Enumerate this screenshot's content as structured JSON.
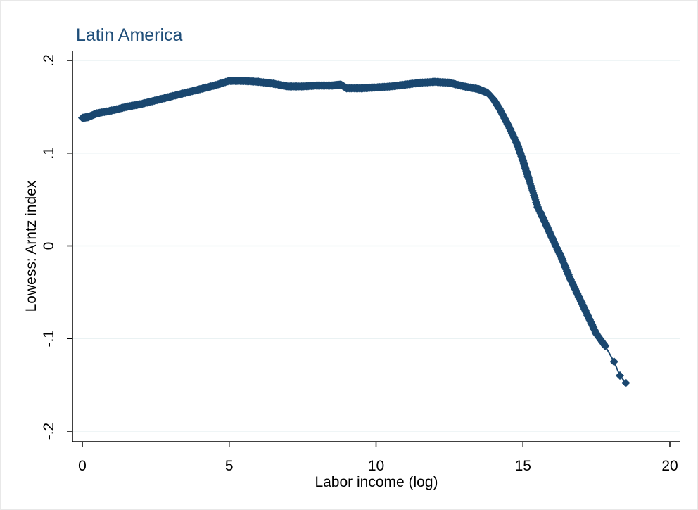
{
  "chart_data": {
    "type": "scatter",
    "title": "Latin America",
    "xlabel": "Labor income (log)",
    "ylabel": "Lowess: Arntz index",
    "xlim": [
      0,
      20
    ],
    "ylim": [
      -0.2,
      0.2
    ],
    "xticks": [
      0,
      5,
      10,
      15,
      20
    ],
    "xtick_labels": [
      "0",
      "5",
      "10",
      "15",
      "20"
    ],
    "yticks": [
      -0.2,
      -0.1,
      0,
      0.1,
      0.2
    ],
    "ytick_labels": [
      "-.2",
      "-.1",
      "0",
      ".1",
      ".2"
    ],
    "grid": true,
    "marker_color": "#1a476f",
    "grid_color": "#eaf2f3",
    "series": [
      {
        "x": [
          0.0,
          0.2,
          0.5,
          1.0,
          1.5,
          2.0,
          2.5,
          3.0,
          3.5,
          4.0,
          4.5,
          5.0,
          5.5,
          6.0,
          6.5,
          7.0,
          7.5,
          8.0,
          8.5,
          8.8,
          9.0,
          9.5,
          10.0,
          10.5,
          11.0,
          11.5,
          12.0,
          12.5,
          13.0,
          13.5,
          13.8,
          14.0,
          14.2,
          14.5,
          14.8,
          15.0,
          15.2,
          15.5,
          15.8,
          16.0,
          16.3,
          16.6,
          16.9,
          17.2,
          17.5,
          17.8,
          18.1,
          18.3,
          18.5
        ],
        "y": [
          0.138,
          0.139,
          0.143,
          0.146,
          0.15,
          0.153,
          0.157,
          0.161,
          0.165,
          0.169,
          0.173,
          0.178,
          0.178,
          0.177,
          0.175,
          0.172,
          0.172,
          0.173,
          0.173,
          0.174,
          0.17,
          0.17,
          0.171,
          0.172,
          0.174,
          0.176,
          0.177,
          0.176,
          0.172,
          0.169,
          0.165,
          0.158,
          0.148,
          0.13,
          0.11,
          0.092,
          0.072,
          0.042,
          0.022,
          0.008,
          -0.012,
          -0.035,
          -0.055,
          -0.075,
          -0.095,
          -0.108,
          -0.125,
          -0.14,
          -0.148
        ]
      }
    ]
  }
}
